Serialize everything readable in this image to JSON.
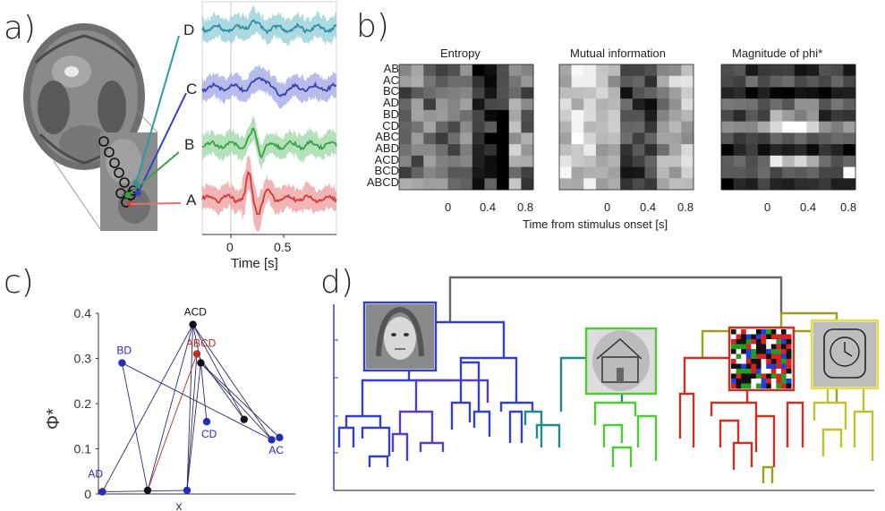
{
  "panel_labels": [
    "a)",
    "b)",
    "c)",
    "d)"
  ],
  "panel_a": {
    "channels": [
      {
        "label": "D",
        "color": "#2f8fa3",
        "shade": "#9fd3dc"
      },
      {
        "label": "C",
        "color": "#3a43b5",
        "shade": "#aab0e6"
      },
      {
        "label": "B",
        "color": "#3aa04a",
        "shade": "#a8dcae"
      },
      {
        "label": "A",
        "color": "#d23a3a",
        "shade": "#f0a8a8"
      }
    ],
    "xticks": [
      "0",
      "0.5"
    ],
    "xlabel": "Time [s]"
  },
  "panel_b": {
    "titles": [
      "Entropy",
      "Mutual information",
      "Magnitude of phi*"
    ],
    "rows": [
      "AB",
      "AC",
      "BC",
      "AD",
      "BD",
      "CD",
      "ABC",
      "ABD",
      "ACD",
      "BCD",
      "ABCD"
    ],
    "xticks": [
      "0",
      "0.4",
      "0.8"
    ],
    "xlabel": "Time from stimulus onset [s]"
  },
  "chart_data": [
    {
      "type": "scatter",
      "title": "",
      "xlabel": "x",
      "ylabel": "Φ*",
      "ylim": [
        0,
        0.4
      ],
      "yticks": [
        "0",
        "0.1",
        "0.2",
        "0.3",
        "0.4"
      ],
      "points": [
        {
          "label": "ACD",
          "x": 0.48,
          "y": 0.375,
          "color": "#111111"
        },
        {
          "label": "BD",
          "x": 0.12,
          "y": 0.29,
          "color": "#2a2ab8"
        },
        {
          "label": "ABCD",
          "x": 0.5,
          "y": 0.31,
          "color": "#c02a2a"
        },
        {
          "label": "CD",
          "x": 0.55,
          "y": 0.16,
          "color": "#2a2ab8"
        },
        {
          "label": "AC",
          "x": 0.92,
          "y": 0.125,
          "color": "#2a2ab8"
        },
        {
          "label": "AD",
          "x": 0.02,
          "y": 0.005,
          "color": "#2a2ab8"
        },
        {
          "label": "",
          "x": 0.52,
          "y": 0.29,
          "color": "#111111"
        },
        {
          "label": "",
          "x": 0.74,
          "y": 0.165,
          "color": "#111111"
        },
        {
          "label": "",
          "x": 0.88,
          "y": 0.12,
          "color": "#2a2ab8"
        },
        {
          "label": "",
          "x": 0.25,
          "y": 0.008,
          "color": "#111111"
        },
        {
          "label": "",
          "x": 0.45,
          "y": 0.008,
          "color": "#2a2ab8"
        }
      ]
    }
  ],
  "panel_d": {
    "branch_colors": {
      "face": "#3340c8",
      "face_inner": "#5a3cc0",
      "house": "#1f8a8a",
      "green": "#4ccc30",
      "red": "#cc3020",
      "yellow": "#c0c030",
      "top": "#666666",
      "olive": "#99a020"
    },
    "thumbnails": [
      "face-image",
      "house-image",
      "noise-image",
      "clock-image"
    ]
  }
}
